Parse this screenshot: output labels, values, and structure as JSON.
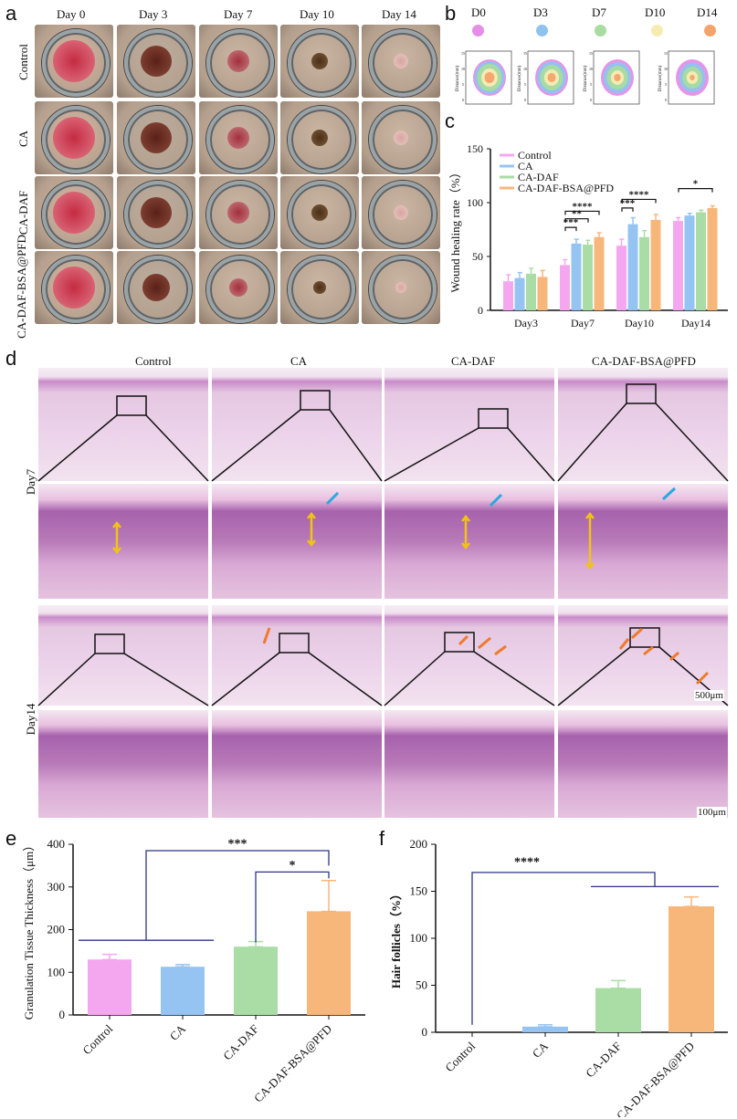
{
  "panel_labels": {
    "a": "a",
    "b": "b",
    "c": "c",
    "d": "d",
    "e": "e",
    "f": "f"
  },
  "panel_a": {
    "days": [
      "Day 0",
      "Day 3",
      "Day 7",
      "Day 10",
      "Day 14"
    ],
    "groups": [
      "Control",
      "CA",
      "CA-DAF",
      "CA-DAF-BSA@PFD"
    ]
  },
  "panel_b": {
    "legend": [
      "D0",
      "D3",
      "D7",
      "D10",
      "D14"
    ],
    "legend_colors": [
      "#e58ee8",
      "#8fc3ee",
      "#a8dca0",
      "#f6ecb2",
      "#f5a36b"
    ],
    "axis_label": "Distance(mm)"
  },
  "panel_d": {
    "groups": [
      "Control",
      "CA",
      "CA-DAF",
      "CA-DAF-BSA@PFD"
    ],
    "rows": [
      "Day7",
      "Day14"
    ],
    "scale_500": "500μm",
    "scale_100": "100μm"
  },
  "chart_data": [
    {
      "type": "bar",
      "ylabel": "Wound healing rate（%）",
      "categories": [
        "Day3",
        "Day7",
        "Day10",
        "Day14"
      ],
      "ylim": [
        0,
        150
      ],
      "yticks": [
        "0",
        "50",
        "100",
        "150"
      ],
      "series": [
        {
          "name": "Control",
          "color": "#f4a7ef",
          "values": [
            27,
            42,
            60,
            83
          ],
          "errors": [
            6,
            5,
            6,
            3
          ]
        },
        {
          "name": "CA",
          "color": "#96c4f2",
          "values": [
            30,
            62,
            80,
            88
          ],
          "errors": [
            5,
            4,
            6,
            2
          ]
        },
        {
          "name": "CA-DAF",
          "color": "#a9dda5",
          "values": [
            34,
            61,
            68,
            91
          ],
          "errors": [
            5,
            4,
            6,
            2
          ]
        },
        {
          "name": "CA-DAF-BSA@PFD",
          "color": "#f7b77b",
          "values": [
            31,
            68,
            84,
            95
          ],
          "errors": [
            6,
            4,
            5,
            2
          ]
        }
      ],
      "significance": [
        "****",
        "**",
        "***",
        "***",
        "****",
        "*"
      ]
    },
    {
      "type": "bar",
      "ylabel": "Granulation Tissue Thickness（μm）",
      "categories": [
        "Control",
        "CA",
        "CA-DAF",
        "CA-DAF-BSA@PFD"
      ],
      "colors": [
        "#f4a7ef",
        "#96c4f2",
        "#a9dda5",
        "#f7b77b"
      ],
      "values": [
        130,
        113,
        160,
        243
      ],
      "errors": [
        12,
        5,
        12,
        72
      ],
      "ylim": [
        0,
        400
      ],
      "yticks": [
        "0",
        "100",
        "200",
        "300",
        "400"
      ],
      "significance": [
        "***",
        "*"
      ]
    },
    {
      "type": "bar",
      "ylabel": "Hair follicles（%）",
      "categories": [
        "Control",
        "CA",
        "CA-DAF",
        "CA-DAF-BSA@PFD"
      ],
      "colors": [
        "#f4a7ef",
        "#96c4f2",
        "#a9dda5",
        "#f7b77b"
      ],
      "values": [
        0,
        6,
        47,
        134
      ],
      "errors": [
        0,
        2,
        8,
        10
      ],
      "ylim": [
        0,
        200
      ],
      "yticks": [
        "0",
        "50",
        "100",
        "150",
        "200"
      ],
      "significance": [
        "****"
      ]
    }
  ]
}
